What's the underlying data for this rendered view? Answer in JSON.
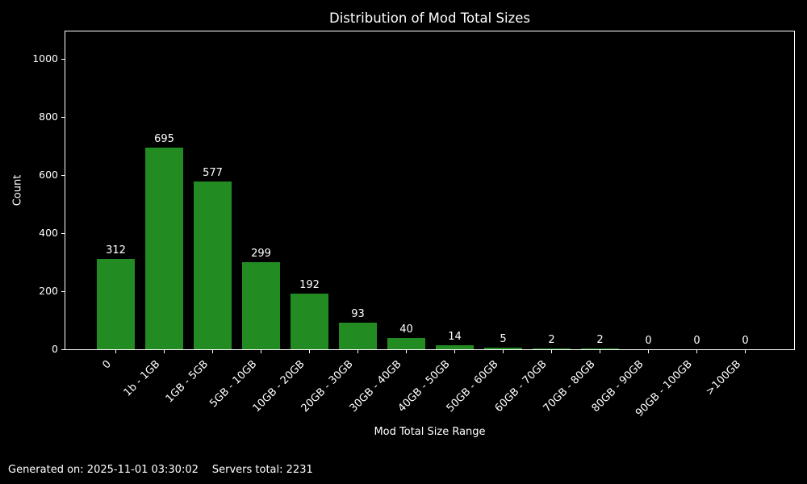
{
  "figure": {
    "background": "#000000",
    "text_color": "#ffffff"
  },
  "chart_data": {
    "type": "bar",
    "title": "Distribution of Mod Total Sizes",
    "xlabel": "Mod Total Size Range",
    "ylabel": "Count",
    "categories": [
      "0",
      "1b - 1GB",
      "1GB - 5GB",
      "5GB - 10GB",
      "10GB - 20GB",
      "20GB - 30GB",
      "30GB - 40GB",
      "40GB - 50GB",
      "50GB - 60GB",
      "60GB - 70GB",
      "70GB - 80GB",
      "80GB - 90GB",
      "90GB - 100GB",
      ">100GB"
    ],
    "values": [
      312,
      695,
      577,
      299,
      192,
      93,
      40,
      14,
      5,
      2,
      2,
      0,
      0,
      0
    ],
    "yticks": [
      0,
      200,
      400,
      600,
      800,
      1000
    ],
    "ylim": [
      0,
      1097
    ],
    "bar_color": "#228B22",
    "axis_color": "#ffffff",
    "tick_label_rotation": 45,
    "grid": false,
    "legend": null
  },
  "footer": {
    "generated": "Generated on: 2025-11-01 03:30:02",
    "servers_total": "Servers total: 2231"
  }
}
